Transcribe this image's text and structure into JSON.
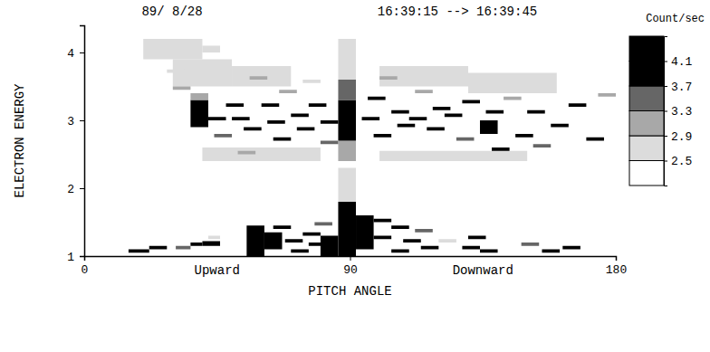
{
  "chart_data": {
    "type": "heatmap",
    "title": "89/ 8/28",
    "subtitle": "16:39:15 --> 16:39:45",
    "x_label": "PITCH ANGLE",
    "y_label": "ELECTRON ENERGY",
    "annotations": [
      "Upward",
      "Downward"
    ],
    "xlim": [
      0,
      180
    ],
    "xticks": [
      0,
      90,
      180
    ],
    "ylim": [
      1,
      4.4
    ],
    "yticks": [
      1,
      2,
      3,
      4
    ],
    "colorbar": {
      "label": "Count/sec",
      "range": [
        2.1,
        4.5
      ],
      "ticks": [
        2.5,
        2.9,
        3.3,
        3.7,
        4.1
      ],
      "colors": [
        "#ffffff",
        "#dcdcdc",
        "#a8a8a8",
        "#666666",
        "#000000",
        "#000000"
      ]
    },
    "cells": [
      {
        "pitch": [
          15,
          22
        ],
        "energy": [
          1.05,
          1.1
        ],
        "value": 3.9
      },
      {
        "pitch": [
          22,
          28
        ],
        "energy": [
          1.1,
          1.15
        ],
        "value": 3.9
      },
      {
        "pitch": [
          31,
          36
        ],
        "energy": [
          1.1,
          1.15
        ],
        "value": 3.5
      },
      {
        "pitch": [
          36,
          40
        ],
        "energy": [
          1.15,
          1.2
        ],
        "value": 3.9
      },
      {
        "pitch": [
          40,
          46
        ],
        "energy": [
          1.15,
          1.22
        ],
        "value": 4.0
      },
      {
        "pitch": [
          42,
          46
        ],
        "energy": [
          1.25,
          1.3
        ],
        "value": 2.8
      },
      {
        "pitch": [
          55,
          61
        ],
        "energy": [
          1.0,
          1.45
        ],
        "value": 4.2
      },
      {
        "pitch": [
          61,
          67
        ],
        "energy": [
          1.1,
          1.35
        ],
        "value": 3.9
      },
      {
        "pitch": [
          64,
          70
        ],
        "energy": [
          1.4,
          1.45
        ],
        "value": 3.9
      },
      {
        "pitch": [
          68,
          74
        ],
        "energy": [
          1.2,
          1.25
        ],
        "value": 4.0
      },
      {
        "pitch": [
          70,
          76
        ],
        "energy": [
          1.05,
          1.1
        ],
        "value": 4.0
      },
      {
        "pitch": [
          74,
          80
        ],
        "energy": [
          1.3,
          1.35
        ],
        "value": 3.8
      },
      {
        "pitch": [
          76,
          82
        ],
        "energy": [
          1.15,
          1.2
        ],
        "value": 4.0
      },
      {
        "pitch": [
          78,
          84
        ],
        "energy": [
          1.45,
          1.5
        ],
        "value": 3.5
      },
      {
        "pitch": [
          80,
          86
        ],
        "energy": [
          1.0,
          1.3
        ],
        "value": 4.1
      },
      {
        "pitch": [
          86,
          92
        ],
        "energy": [
          1.0,
          1.8
        ],
        "value": 4.3
      },
      {
        "pitch": [
          86,
          92
        ],
        "energy": [
          1.8,
          2.3
        ],
        "value": 2.7
      },
      {
        "pitch": [
          92,
          98
        ],
        "energy": [
          1.1,
          1.6
        ],
        "value": 3.9
      },
      {
        "pitch": [
          98,
          104
        ],
        "energy": [
          1.5,
          1.55
        ],
        "value": 3.8
      },
      {
        "pitch": [
          98,
          104
        ],
        "energy": [
          1.25,
          1.3
        ],
        "value": 4.0
      },
      {
        "pitch": [
          104,
          110
        ],
        "energy": [
          1.4,
          1.45
        ],
        "value": 3.9
      },
      {
        "pitch": [
          104,
          110
        ],
        "energy": [
          1.05,
          1.1
        ],
        "value": 4.0
      },
      {
        "pitch": [
          108,
          114
        ],
        "energy": [
          1.2,
          1.25
        ],
        "value": 3.9
      },
      {
        "pitch": [
          112,
          118
        ],
        "energy": [
          1.35,
          1.4
        ],
        "value": 3.5
      },
      {
        "pitch": [
          114,
          120
        ],
        "energy": [
          1.1,
          1.15
        ],
        "value": 3.9
      },
      {
        "pitch": [
          120,
          126
        ],
        "energy": [
          1.2,
          1.25
        ],
        "value": 2.8
      },
      {
        "pitch": [
          128,
          134
        ],
        "energy": [
          1.1,
          1.15
        ],
        "value": 3.9
      },
      {
        "pitch": [
          130,
          136
        ],
        "energy": [
          1.25,
          1.3
        ],
        "value": 3.9
      },
      {
        "pitch": [
          134,
          140
        ],
        "energy": [
          1.05,
          1.1
        ],
        "value": 4.0
      },
      {
        "pitch": [
          148,
          154
        ],
        "energy": [
          1.15,
          1.2
        ],
        "value": 3.5
      },
      {
        "pitch": [
          155,
          161
        ],
        "energy": [
          1.05,
          1.1
        ],
        "value": 3.9
      },
      {
        "pitch": [
          162,
          168
        ],
        "energy": [
          1.1,
          1.15
        ],
        "value": 3.9
      },
      {
        "pitch": [
          30,
          50
        ],
        "energy": [
          3.5,
          3.9
        ],
        "value": 2.7
      },
      {
        "pitch": [
          50,
          70
        ],
        "energy": [
          3.5,
          3.8
        ],
        "value": 2.7
      },
      {
        "pitch": [
          100,
          130
        ],
        "energy": [
          3.5,
          3.8
        ],
        "value": 2.7
      },
      {
        "pitch": [
          40,
          80
        ],
        "energy": [
          2.4,
          2.6
        ],
        "value": 2.7
      },
      {
        "pitch": [
          100,
          150
        ],
        "energy": [
          2.4,
          2.55
        ],
        "value": 2.7
      },
      {
        "pitch": [
          20,
          40
        ],
        "energy": [
          3.9,
          4.2
        ],
        "value": 2.6
      },
      {
        "pitch": [
          130,
          160
        ],
        "energy": [
          3.4,
          3.7
        ],
        "value": 2.7
      },
      {
        "pitch": [
          86,
          92
        ],
        "energy": [
          2.4,
          2.7
        ],
        "value": 3.1
      },
      {
        "pitch": [
          86,
          92
        ],
        "energy": [
          2.7,
          3.3
        ],
        "value": 4.3
      },
      {
        "pitch": [
          86,
          92
        ],
        "energy": [
          3.3,
          3.6
        ],
        "value": 3.5
      },
      {
        "pitch": [
          86,
          92
        ],
        "energy": [
          3.6,
          4.2
        ],
        "value": 2.7
      },
      {
        "pitch": [
          28,
          34
        ],
        "energy": [
          3.7,
          3.75
        ],
        "value": 2.7
      },
      {
        "pitch": [
          30,
          36
        ],
        "energy": [
          3.45,
          3.5
        ],
        "value": 3.1
      },
      {
        "pitch": [
          36,
          42
        ],
        "energy": [
          2.9,
          3.3
        ],
        "value": 3.9
      },
      {
        "pitch": [
          36,
          42
        ],
        "energy": [
          3.3,
          3.4
        ],
        "value": 3.1
      },
      {
        "pitch": [
          40,
          46
        ],
        "energy": [
          4.0,
          4.1
        ],
        "value": 2.7
      },
      {
        "pitch": [
          42,
          48
        ],
        "energy": [
          3.0,
          3.05
        ],
        "value": 3.9
      },
      {
        "pitch": [
          44,
          50
        ],
        "energy": [
          2.75,
          2.8
        ],
        "value": 3.5
      },
      {
        "pitch": [
          48,
          54
        ],
        "energy": [
          3.2,
          3.25
        ],
        "value": 3.9
      },
      {
        "pitch": [
          50,
          56
        ],
        "energy": [
          3.0,
          3.05
        ],
        "value": 4.0
      },
      {
        "pitch": [
          52,
          58
        ],
        "energy": [
          2.5,
          2.55
        ],
        "value": 3.1
      },
      {
        "pitch": [
          54,
          60
        ],
        "energy": [
          2.85,
          2.9
        ],
        "value": 3.9
      },
      {
        "pitch": [
          56,
          62
        ],
        "energy": [
          3.6,
          3.65
        ],
        "value": 2.9
      },
      {
        "pitch": [
          60,
          66
        ],
        "energy": [
          3.2,
          3.25
        ],
        "value": 4.0
      },
      {
        "pitch": [
          62,
          68
        ],
        "energy": [
          2.95,
          3.0
        ],
        "value": 3.9
      },
      {
        "pitch": [
          64,
          70
        ],
        "energy": [
          2.7,
          2.75
        ],
        "value": 3.9
      },
      {
        "pitch": [
          66,
          72
        ],
        "energy": [
          3.4,
          3.45
        ],
        "value": 3.1
      },
      {
        "pitch": [
          70,
          76
        ],
        "energy": [
          3.05,
          3.1
        ],
        "value": 4.0
      },
      {
        "pitch": [
          72,
          78
        ],
        "energy": [
          2.85,
          2.9
        ],
        "value": 3.9
      },
      {
        "pitch": [
          74,
          80
        ],
        "energy": [
          3.55,
          3.6
        ],
        "value": 2.8
      },
      {
        "pitch": [
          76,
          82
        ],
        "energy": [
          3.2,
          3.25
        ],
        "value": 3.9
      },
      {
        "pitch": [
          80,
          86
        ],
        "energy": [
          2.95,
          3.0
        ],
        "value": 4.0
      },
      {
        "pitch": [
          80,
          86
        ],
        "energy": [
          2.65,
          2.7
        ],
        "value": 3.5
      },
      {
        "pitch": [
          94,
          100
        ],
        "energy": [
          3.0,
          3.05
        ],
        "value": 4.0
      },
      {
        "pitch": [
          96,
          102
        ],
        "energy": [
          3.3,
          3.35
        ],
        "value": 3.9
      },
      {
        "pitch": [
          98,
          104
        ],
        "energy": [
          2.75,
          2.8
        ],
        "value": 3.9
      },
      {
        "pitch": [
          100,
          106
        ],
        "energy": [
          3.6,
          3.65
        ],
        "value": 2.9
      },
      {
        "pitch": [
          104,
          110
        ],
        "energy": [
          3.1,
          3.15
        ],
        "value": 3.9
      },
      {
        "pitch": [
          106,
          112
        ],
        "energy": [
          2.9,
          2.95
        ],
        "value": 3.9
      },
      {
        "pitch": [
          110,
          116
        ],
        "energy": [
          3.0,
          3.05
        ],
        "value": 4.0
      },
      {
        "pitch": [
          112,
          118
        ],
        "energy": [
          3.4,
          3.45
        ],
        "value": 3.1
      },
      {
        "pitch": [
          116,
          122
        ],
        "energy": [
          2.85,
          2.9
        ],
        "value": 3.9
      },
      {
        "pitch": [
          118,
          124
        ],
        "energy": [
          3.15,
          3.2
        ],
        "value": 3.9
      },
      {
        "pitch": [
          122,
          128
        ],
        "energy": [
          3.05,
          3.1
        ],
        "value": 4.0
      },
      {
        "pitch": [
          126,
          132
        ],
        "energy": [
          2.7,
          2.75
        ],
        "value": 3.5
      },
      {
        "pitch": [
          128,
          134
        ],
        "energy": [
          3.25,
          3.3
        ],
        "value": 3.9
      },
      {
        "pitch": [
          134,
          140
        ],
        "energy": [
          2.8,
          3.0
        ],
        "value": 4.0
      },
      {
        "pitch": [
          136,
          142
        ],
        "energy": [
          3.1,
          3.15
        ],
        "value": 3.9
      },
      {
        "pitch": [
          138,
          144
        ],
        "energy": [
          2.55,
          2.6
        ],
        "value": 3.9
      },
      {
        "pitch": [
          142,
          148
        ],
        "energy": [
          3.3,
          3.35
        ],
        "value": 3.1
      },
      {
        "pitch": [
          146,
          152
        ],
        "energy": [
          2.75,
          2.8
        ],
        "value": 3.9
      },
      {
        "pitch": [
          150,
          156
        ],
        "energy": [
          3.1,
          3.15
        ],
        "value": 3.9
      },
      {
        "pitch": [
          152,
          158
        ],
        "energy": [
          2.6,
          2.65
        ],
        "value": 3.5
      },
      {
        "pitch": [
          158,
          164
        ],
        "energy": [
          2.9,
          2.95
        ],
        "value": 3.9
      },
      {
        "pitch": [
          164,
          170
        ],
        "energy": [
          3.2,
          3.25
        ],
        "value": 3.9
      },
      {
        "pitch": [
          170,
          176
        ],
        "energy": [
          2.7,
          2.75
        ],
        "value": 3.9
      },
      {
        "pitch": [
          174,
          180
        ],
        "energy": [
          3.35,
          3.4
        ],
        "value": 3.1
      }
    ]
  }
}
